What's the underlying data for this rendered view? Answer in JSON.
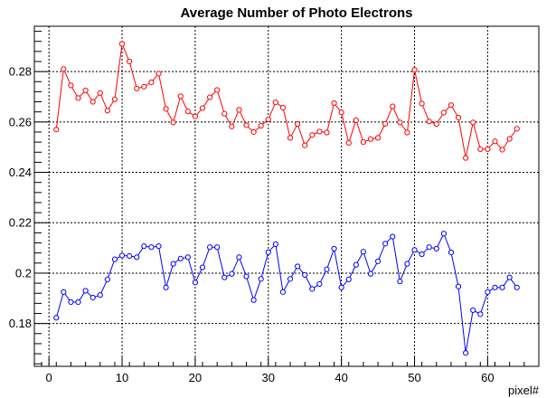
{
  "chart_data": {
    "type": "line",
    "title": "Average Number of Photo Electrons",
    "xlabel": "pixel#",
    "ylabel": "",
    "xlim": [
      -2,
      67
    ],
    "ylim": [
      0.163,
      0.298
    ],
    "xticks": [
      0,
      10,
      20,
      30,
      40,
      50,
      60
    ],
    "yticks": [
      0.18,
      0.2,
      0.22,
      0.24,
      0.26,
      0.28
    ],
    "ytick_labels": [
      "0.18",
      "0.2",
      "0.22",
      "0.24",
      "0.26",
      "0.28"
    ],
    "grid": true,
    "x": [
      1,
      2,
      3,
      4,
      5,
      6,
      7,
      8,
      9,
      10,
      11,
      12,
      13,
      14,
      15,
      16,
      17,
      18,
      19,
      20,
      21,
      22,
      23,
      24,
      25,
      26,
      27,
      28,
      29,
      30,
      31,
      32,
      33,
      34,
      35,
      36,
      37,
      38,
      39,
      40,
      41,
      42,
      43,
      44,
      45,
      46,
      47,
      48,
      49,
      50,
      51,
      52,
      53,
      54,
      55,
      56,
      57,
      58,
      59,
      60,
      61,
      62,
      63,
      64
    ],
    "series": [
      {
        "color": "#ff0000",
        "values": [
          0.257,
          0.281,
          0.2745,
          0.2695,
          0.2725,
          0.268,
          0.2715,
          0.2645,
          0.269,
          0.291,
          0.284,
          0.2733,
          0.274,
          0.2757,
          0.2792,
          0.2652,
          0.2598,
          0.2702,
          0.2642,
          0.2622,
          0.2655,
          0.2698,
          0.2727,
          0.2633,
          0.2582,
          0.2648,
          0.2587,
          0.256,
          0.2585,
          0.261,
          0.2678,
          0.2657,
          0.2537,
          0.2592,
          0.2507,
          0.2548,
          0.2562,
          0.2558,
          0.2675,
          0.2638,
          0.2517,
          0.2607,
          0.252,
          0.2532,
          0.2537,
          0.2593,
          0.2662,
          0.2598,
          0.2558,
          0.2807,
          0.2673,
          0.2602,
          0.2592,
          0.2637,
          0.2667,
          0.2617,
          0.2457,
          0.2598,
          0.2492,
          0.2492,
          0.2523,
          0.249,
          0.2533,
          0.2573
        ]
      },
      {
        "color": "#0000ff",
        "values": [
          0.1823,
          0.1925,
          0.1885,
          0.1885,
          0.193,
          0.1903,
          0.1913,
          0.1975,
          0.2055,
          0.207,
          0.2068,
          0.2063,
          0.2107,
          0.2103,
          0.2107,
          0.1943,
          0.2037,
          0.2058,
          0.2063,
          0.1963,
          0.2023,
          0.2103,
          0.2103,
          0.1983,
          0.1997,
          0.2063,
          0.1987,
          0.1893,
          0.1977,
          0.2083,
          0.2115,
          0.1925,
          0.1977,
          0.2027,
          0.1993,
          0.1937,
          0.1957,
          0.2015,
          0.2097,
          0.1943,
          0.1975,
          0.2033,
          0.2085,
          0.1997,
          0.2047,
          0.2117,
          0.2145,
          0.1967,
          0.2037,
          0.2092,
          0.2075,
          0.2103,
          0.2097,
          0.2157,
          0.2082,
          0.1947,
          0.1683,
          0.1853,
          0.1837,
          0.1925,
          0.1943,
          0.1943,
          0.1983,
          0.1943
        ]
      }
    ]
  }
}
